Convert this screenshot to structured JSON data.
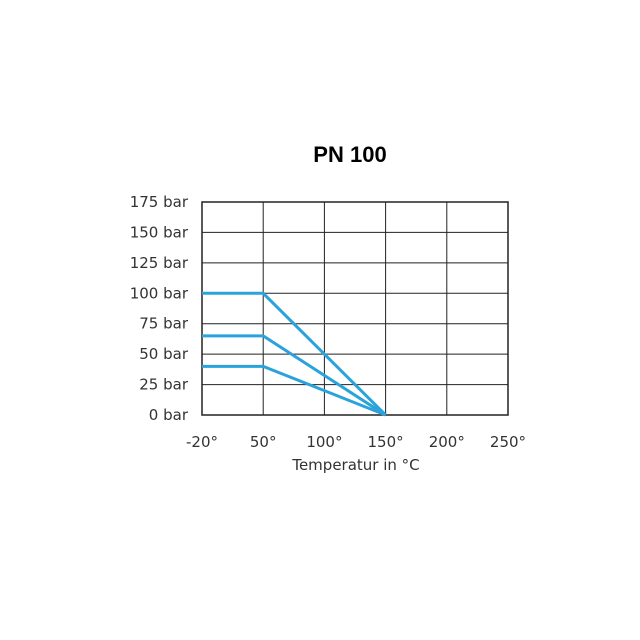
{
  "chart_data": {
    "type": "line",
    "title": "PN 100",
    "xlabel": "Temperatur in °C",
    "ylabel": "",
    "x_ticks": [
      -20,
      50,
      100,
      150,
      200,
      250
    ],
    "x_tick_labels": [
      "-20°",
      "50°",
      "100°",
      "150°",
      "200°",
      "250°"
    ],
    "y_ticks": [
      0,
      25,
      50,
      75,
      100,
      125,
      150,
      175
    ],
    "y_tick_labels": [
      "0 bar",
      "25 bar",
      "50 bar",
      "75 bar",
      "100 bar",
      "125 bar",
      "150 bar",
      "175 bar"
    ],
    "xlim": [
      -20,
      250
    ],
    "ylim": [
      0,
      175
    ],
    "grid": true,
    "series": [
      {
        "x": [
          -20,
          50,
          150
        ],
        "y": [
          100,
          100,
          0
        ]
      },
      {
        "x": [
          -20,
          50,
          150
        ],
        "y": [
          65,
          65,
          0
        ]
      },
      {
        "x": [
          -20,
          50,
          150
        ],
        "y": [
          40,
          40,
          0
        ]
      }
    ],
    "line_color": "#2aa3db",
    "grid_color": "#222222"
  }
}
